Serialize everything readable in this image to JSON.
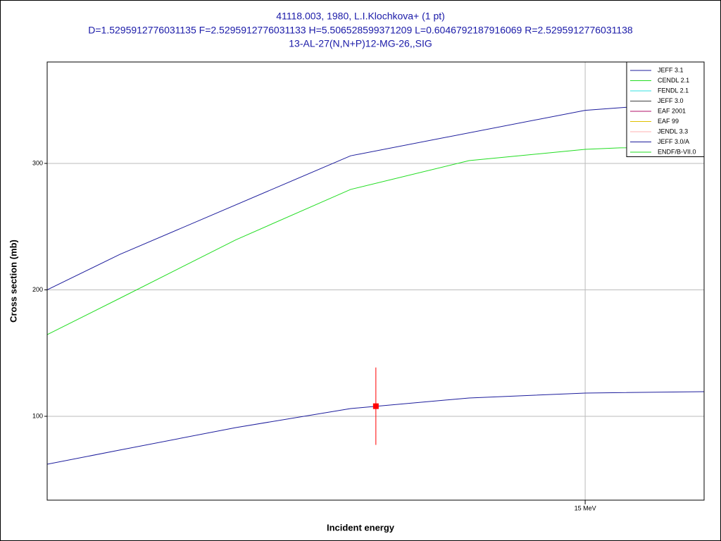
{
  "chart_data": {
    "type": "line",
    "title": "41118.003, 1980, L.I.Klochkova+ (1 pt)",
    "subtitle": "D=1.5295912776031135 F=2.5295912776031133 H=5.506528599371209 L=0.6046792187916069 R=2.5295912776031138",
    "reaction": "13-AL-27(N,N+P)12-MG-26,,SIG",
    "xlabel": "Incident energy",
    "ylabel": "Cross section (mb)",
    "xlim": [
      13.851,
      15.254
    ],
    "ylim": [
      33.7,
      380.2
    ],
    "xticks": [
      {
        "value": 15,
        "label": "15 MeV"
      }
    ],
    "yticks": [
      100,
      200,
      300
    ],
    "grid": true,
    "legend": "upper right",
    "series": [
      {
        "name": "JEFF 3.1",
        "color": "#1c1c9c",
        "x": [
          13.851,
          14.006,
          14.499,
          15.0,
          15.254
        ],
        "values": [
          200,
          228,
          306,
          342,
          349
        ]
      },
      {
        "name": "CENDL 2.1",
        "color": "#22dd22",
        "x": [
          13.851,
          14.006,
          14.254,
          14.499,
          14.752,
          15.0,
          15.074,
          15.254
        ],
        "values": [
          164.6,
          193.3,
          239.6,
          279.4,
          302.2,
          311.1,
          312.3,
          313
        ]
      },
      {
        "name": "FENDL 2.1",
        "color": "#33e0e0",
        "x": [],
        "values": []
      },
      {
        "name": "JEFF 3.0",
        "color": "#404040",
        "x": [],
        "values": []
      },
      {
        "name": "EAF 2001",
        "color": "#b0106a",
        "x": [],
        "values": []
      },
      {
        "name": "EAF 99",
        "color": "#e0c000",
        "x": [],
        "values": []
      },
      {
        "name": "JENDL 3.3",
        "color": "#ffb0b0",
        "x": [],
        "values": []
      },
      {
        "name": "JEFF 3.0/A",
        "color": "#1c1c9c",
        "x": [
          13.851,
          14.006,
          14.254,
          14.499,
          14.752,
          15.0,
          15.254
        ],
        "values": [
          62.1,
          73.3,
          91.1,
          106.1,
          114.5,
          118.4,
          119.5
        ]
      },
      {
        "name": "ENDF/B-VII.0",
        "color": "#22dd22",
        "x": [],
        "values": []
      }
    ],
    "experimental": {
      "color": "#ff0000",
      "x": [
        14.553
      ],
      "values": [
        108.0
      ],
      "errors": [
        30.6
      ]
    }
  }
}
